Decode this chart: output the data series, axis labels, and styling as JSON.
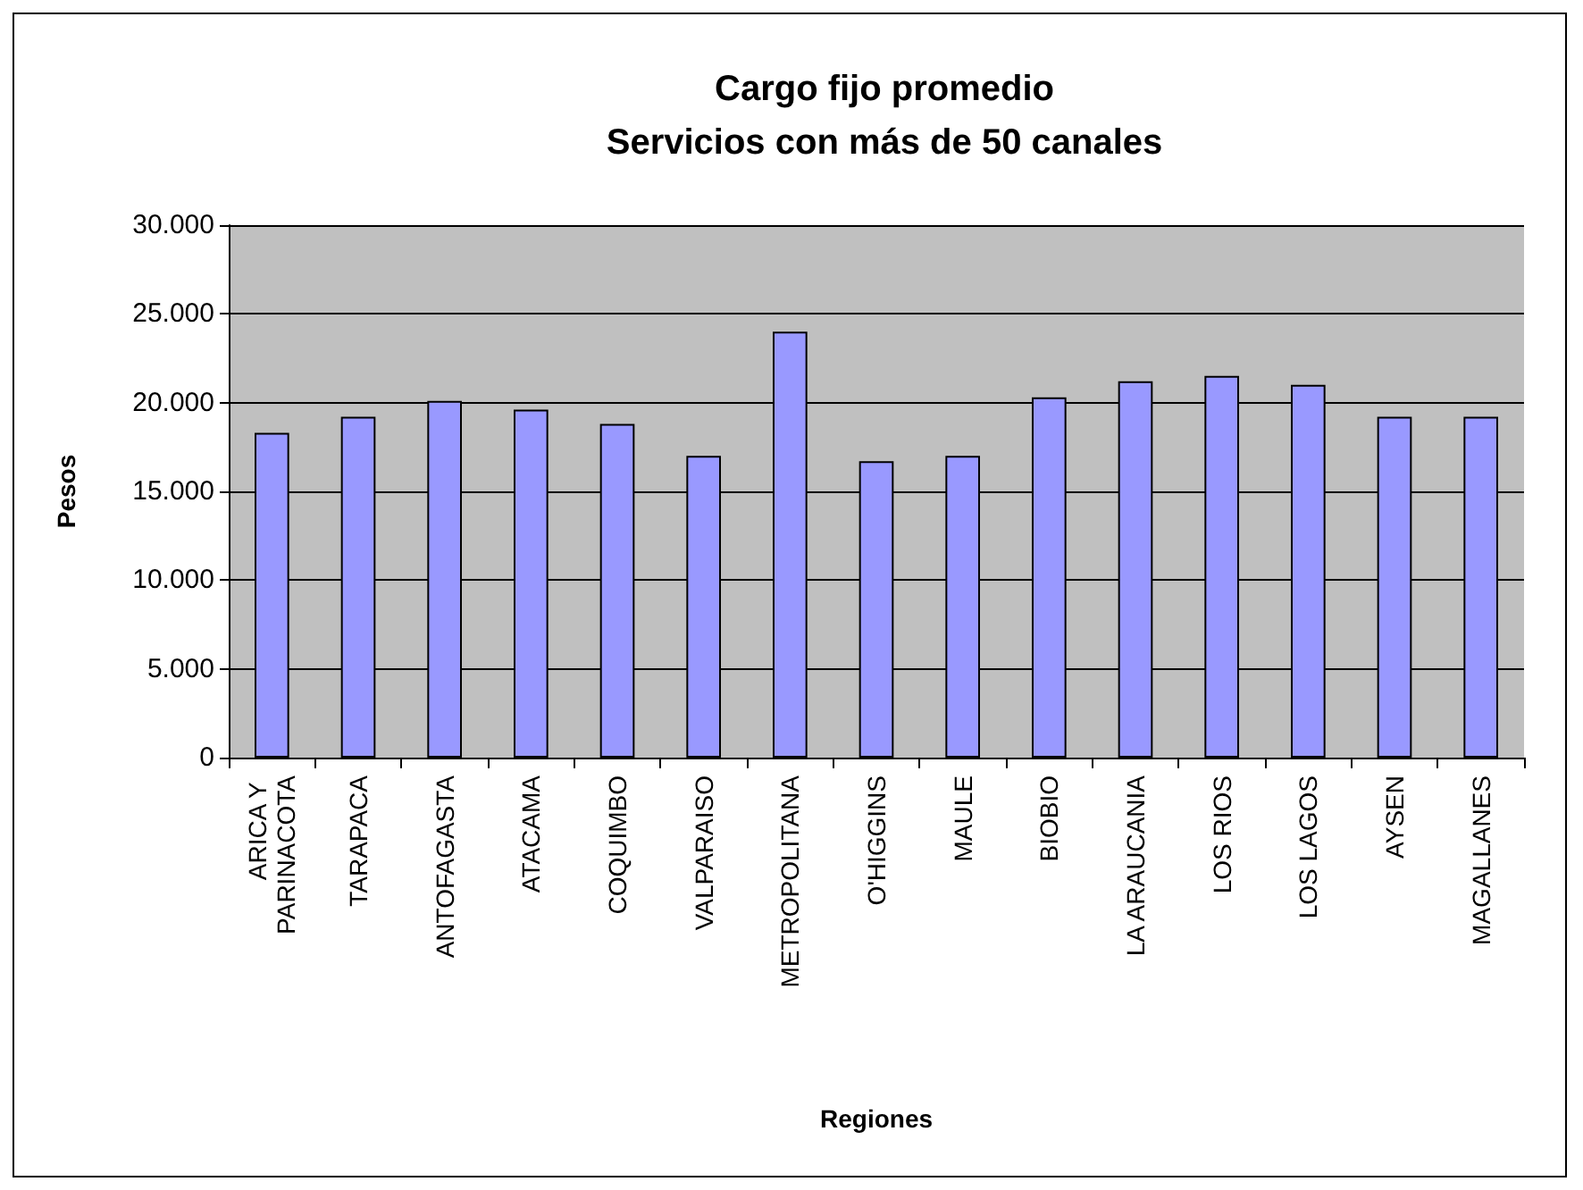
{
  "chart_data": {
    "type": "bar",
    "title": "Cargo fijo promedio\nServicios con más de 50 canales",
    "xlabel": "Regiones",
    "ylabel": "Pesos",
    "categories": [
      "ARICA Y PARINACOTA",
      "TARAPACA",
      "ANTOFAGASTA",
      "ATACAMA",
      "COQUIMBO",
      "VALPARAISO",
      "METROPOLITANA",
      "O'HIGGINS",
      "MAULE",
      "BIOBIO",
      "LA ARAUCANIA",
      "LOS RIOS",
      "LOS LAGOS",
      "AYSEN",
      "MAGALLANES"
    ],
    "values": [
      18300,
      19200,
      20100,
      19600,
      18800,
      17000,
      24000,
      16700,
      17000,
      20300,
      21200,
      21500,
      21000,
      19200,
      19200
    ],
    "color": "#9999ff",
    "ylim": [
      0,
      30000
    ],
    "yticks": [
      0,
      {
        "value": 5000,
        "label": "5.000"
      },
      {
        "value": 10000,
        "label": "10.000"
      },
      {
        "value": 15000,
        "label": "15.000"
      },
      {
        "value": 20000,
        "label": "20.000"
      },
      {
        "value": 25000,
        "label": "25.000"
      },
      {
        "value": 30000,
        "label": "30.000"
      }
    ],
    "grid": "y"
  }
}
